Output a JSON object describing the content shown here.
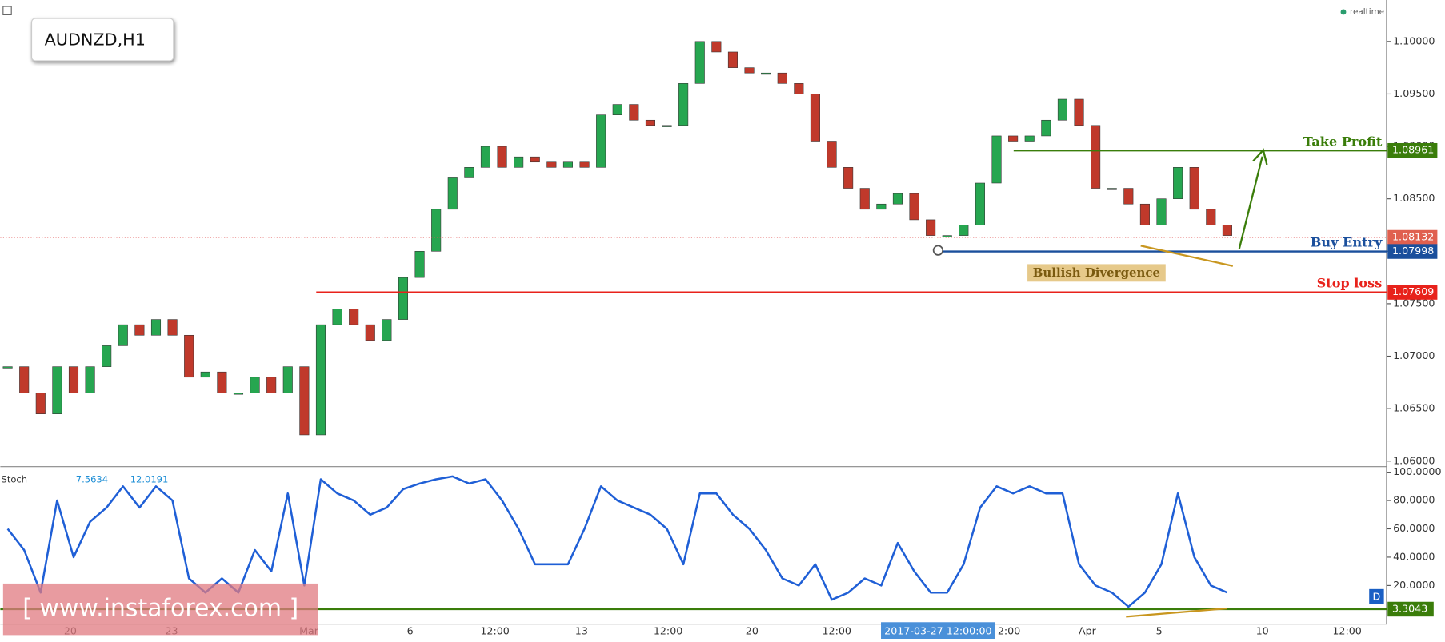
{
  "header": {
    "symbol": "AUDNZD,H1",
    "realtime": "realtime",
    "watermark": "[ www.instaforex.com ]",
    "date_cursor": "2017-03-27 12:00:00",
    "period_badge": "D"
  },
  "chart_data": [
    {
      "type": "candlestick",
      "values": [
        1.069,
        1.0665,
        1.0645,
        1.069,
        1.0665,
        1.069,
        1.071,
        1.073,
        1.072,
        1.0735,
        1.072,
        1.068,
        1.0685,
        1.0665,
        1.0665,
        1.068,
        1.0665,
        1.069,
        1.0625,
        1.073,
        1.0745,
        1.073,
        1.0715,
        1.0735,
        1.0775,
        1.08,
        1.084,
        1.087,
        1.088,
        1.09,
        1.088,
        1.089,
        1.0885,
        1.088,
        1.0885,
        1.088,
        1.093,
        1.094,
        1.0925,
        1.092,
        1.092,
        1.096,
        1.1,
        1.099,
        1.0975,
        1.097,
        1.097,
        1.096,
        1.095,
        1.0905,
        1.088,
        1.086,
        1.084,
        1.0845,
        1.0855,
        1.083,
        1.0815,
        1.0815,
        1.0825,
        1.0865,
        1.091,
        1.0905,
        1.091,
        1.0925,
        1.0945,
        1.092,
        1.086,
        1.086,
        1.0845,
        1.0825,
        1.085,
        1.088,
        1.084,
        1.0825,
        1.0815
      ],
      "up_color": "#26a650",
      "down_color": "#c0392b",
      "ylim": [
        1.05947,
        1.10395
      ],
      "yticks": [
        {
          "value": 1.06,
          "label": "1.06000"
        },
        {
          "value": 1.065,
          "label": "1.06500"
        },
        {
          "value": 1.07,
          "label": "1.07000"
        },
        {
          "value": 1.075,
          "label": "1.07500"
        },
        {
          "value": 1.08,
          "label": "1.08000"
        },
        {
          "value": 1.085,
          "label": "1.08500"
        },
        {
          "value": 1.09,
          "label": "1.09000"
        },
        {
          "value": 1.095,
          "label": "1.09500"
        },
        {
          "value": 1.1,
          "label": "1.10000"
        }
      ],
      "xticks": [
        "20",
        "23",
        "Mar",
        "6",
        "12:00",
        "13",
        "12:00",
        "20",
        "12:00",
        "2:00",
        "Apr",
        "5",
        "10",
        "12:00"
      ],
      "current_price": 1.08132,
      "levels": [
        {
          "name": "Take Profit",
          "value": 1.08961,
          "color": "#3a7d0a"
        },
        {
          "name": "Buy Entry",
          "value": 1.07998,
          "color": "#1a4f9c"
        },
        {
          "name": "Stop loss",
          "value": 1.07609,
          "color": "#e8221b"
        }
      ],
      "annotation": "Bullish Divergence"
    },
    {
      "type": "line",
      "title": "Stoch",
      "indicator_values": [
        7.5634,
        12.0191
      ],
      "series": [
        {
          "color": "#1f5fd6",
          "values": [
            60,
            45,
            15,
            80,
            40,
            65,
            75,
            90,
            75,
            90,
            80,
            25,
            15,
            25,
            15,
            45,
            30,
            85,
            20,
            95,
            85,
            80,
            70,
            75,
            88,
            92,
            95,
            97,
            92,
            95,
            80,
            60,
            35,
            35,
            35,
            60,
            90,
            80,
            75,
            70,
            60,
            35,
            85,
            85,
            70,
            60,
            45,
            25,
            20,
            35,
            10,
            15,
            25,
            20,
            50,
            30,
            15,
            15,
            35,
            75,
            90,
            85,
            90,
            85,
            85,
            35,
            20,
            15,
            5,
            15,
            35,
            85,
            40,
            20,
            15
          ]
        }
      ],
      "ylim": [
        -7.2,
        103.9
      ],
      "yticks": [
        {
          "value": 20,
          "label": "20.0000"
        },
        {
          "value": 40,
          "label": "40.0000"
        },
        {
          "value": 60,
          "label": "60.0000"
        },
        {
          "value": 80,
          "label": "80.0000"
        },
        {
          "value": 100,
          "label": "100.0000"
        }
      ],
      "level": 3.3043,
      "level_color": "#3a7d0a"
    }
  ]
}
